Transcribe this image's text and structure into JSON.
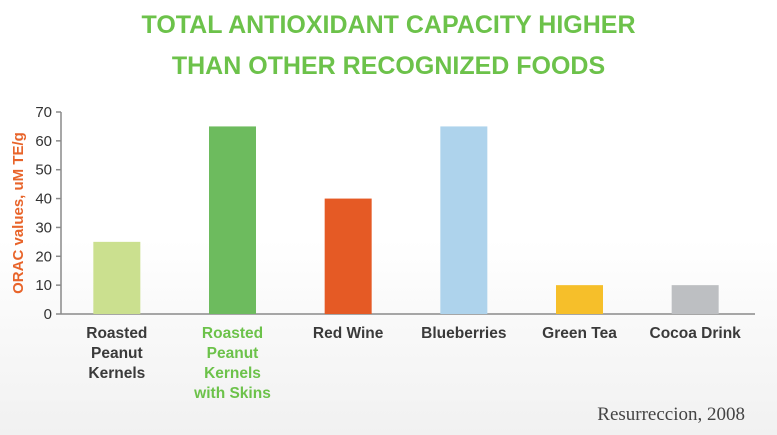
{
  "header": {
    "title_line1": "TOTAL ANTIOXIDANT CAPACITY HIGHER",
    "title_line2": "THAN OTHER RECOGNIZED FOODS"
  },
  "source": "Resurreccion, 2008",
  "colors": {
    "title": "#6cc24a",
    "ylabel": "#e8642a",
    "highlight_label": "#6cc24a"
  },
  "chart_data": {
    "type": "bar",
    "ylabel": "ORAC values, uM TE/g",
    "ylim": [
      0,
      70
    ],
    "yticks": [
      0,
      10,
      20,
      30,
      40,
      50,
      60,
      70
    ],
    "categories": [
      "Roasted Peanut Kernels",
      "Roasted Peanut Kernels with Skins",
      "Red Wine",
      "Blueberries",
      "Green Tea",
      "Cocoa Drink"
    ],
    "category_lines": [
      [
        "Roasted",
        "Peanut",
        "Kernels"
      ],
      [
        "Roasted",
        "Peanut",
        "Kernels",
        "with Skins"
      ],
      [
        "Red Wine"
      ],
      [
        "Blueberries"
      ],
      [
        "Green Tea"
      ],
      [
        "Cocoa Drink"
      ]
    ],
    "values": [
      25,
      65,
      40,
      65,
      10,
      10
    ],
    "bar_colors": [
      "#cbe08f",
      "#6dbb5e",
      "#e55a25",
      "#aed3ec",
      "#f6bf2a",
      "#bdbfc2"
    ],
    "highlighted_category": 1,
    "grid": false
  }
}
